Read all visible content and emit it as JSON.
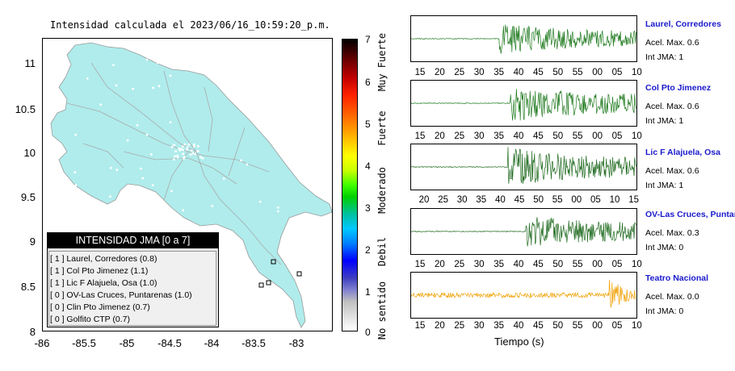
{
  "map": {
    "title": "Intensidad calculada el 2023/06/16_10:59:20_p.m.",
    "y_ticks": [
      "11",
      "10.5",
      "10",
      "9.5",
      "9",
      "8.5",
      "8"
    ],
    "x_ticks": [
      "-86",
      "-85.5",
      "-85",
      "-84.5",
      "-84",
      "-83.5",
      "-83"
    ],
    "land_color": "#b0ecec"
  },
  "legend": {
    "title": "INTENSIDAD JMA [0 a 7]",
    "rows": [
      "[ 1 ]  Laurel, Corredores (0.8)",
      "[ 1 ]  Col Pto Jimenez (1.1)",
      "[ 1 ]  Lic F Alajuela, Osa (1.0)",
      "[ 0 ]  OV-Las Cruces, Puntarenas (1.0)",
      "[ 0 ]  Clin Pto Jimenez (0.7)",
      "[ 0 ]  Golfito CTP (0.7)"
    ]
  },
  "colorbar": {
    "ticks": [
      "7",
      "6",
      "5",
      "4",
      "3",
      "2",
      "1",
      "0"
    ],
    "labels": [
      "Muy Fuerte",
      "Fuerte",
      "Moderado",
      "Debil",
      "No sentido"
    ]
  },
  "traces": {
    "xlabel": "Tiempo (s)",
    "stations": [
      {
        "name": "Laurel, Corredores",
        "acel": "Acel. Max. 0.6",
        "jma": "Int JMA: 1",
        "color": "#1e7a1e",
        "ticks": [
          "15",
          "20",
          "25",
          "30",
          "35",
          "40",
          "45",
          "50",
          "55",
          "00",
          "05",
          "10"
        ],
        "onset": 0.39,
        "quiet": 0.02,
        "amp": 0.75
      },
      {
        "name": "Col Pto Jimenez",
        "acel": "Acel. Max. 0.6",
        "jma": "Int JMA: 1",
        "color": "#1e7a1e",
        "ticks": [
          "15",
          "20",
          "25",
          "30",
          "35",
          "40",
          "45",
          "50",
          "55",
          "00",
          "05",
          "10"
        ],
        "onset": 0.44,
        "quiet": 0.02,
        "amp": 0.9
      },
      {
        "name": "Lic F Alajuela, Osa",
        "acel": "Acel. Max. 0.6",
        "jma": "Int JMA: 1",
        "color": "#1e6a1e",
        "ticks": [
          "20",
          "25",
          "30",
          "35",
          "40",
          "45",
          "50",
          "55",
          "00",
          "05",
          "10",
          "15"
        ],
        "onset": 0.43,
        "quiet": 0.02,
        "amp": 0.95
      },
      {
        "name": "OV-Las Cruces, Puntar",
        "acel": "Acel. Max. 0.3",
        "jma": "Int JMA: 0",
        "color": "#1e6a1e",
        "ticks": [
          "15",
          "20",
          "25",
          "30",
          "35",
          "40",
          "45",
          "50",
          "55",
          "00",
          "05",
          "10"
        ],
        "onset": 0.51,
        "quiet": 0.02,
        "amp": 0.85
      },
      {
        "name": "Teatro Nacional",
        "acel": "Acel. Max. 0.0",
        "jma": "Int JMA: 0",
        "color": "#f0a000",
        "ticks": [
          "15",
          "20",
          "25",
          "30",
          "35",
          "40",
          "45",
          "50",
          "55",
          "00",
          "05",
          "10"
        ],
        "onset": 0.88,
        "quiet": 0.12,
        "amp": 0.8
      }
    ]
  }
}
